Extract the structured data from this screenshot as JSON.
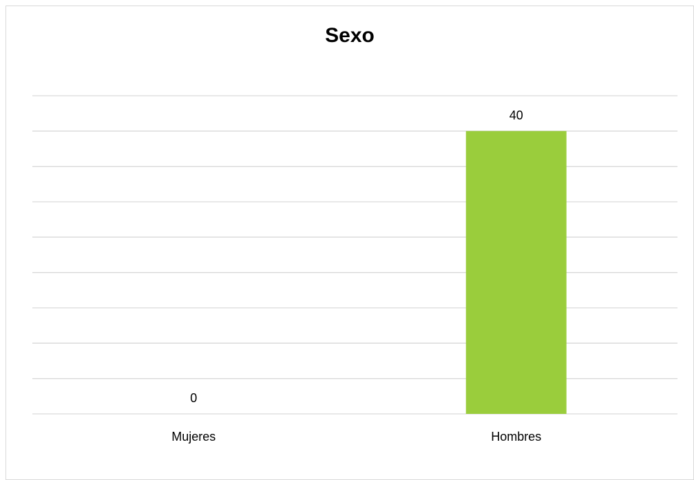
{
  "chart_data": {
    "type": "bar",
    "title": "Sexo",
    "categories": [
      "Mujeres",
      "Hombres"
    ],
    "values": [
      0,
      40
    ],
    "data_labels": [
      "0",
      "40"
    ],
    "xlabel": "",
    "ylabel": "",
    "ylim": [
      0,
      45
    ],
    "gridline_step": 5,
    "grid": true,
    "legend": "none",
    "bar_color": "#9acd3c",
    "gridline_color": "#d9d9d9"
  }
}
